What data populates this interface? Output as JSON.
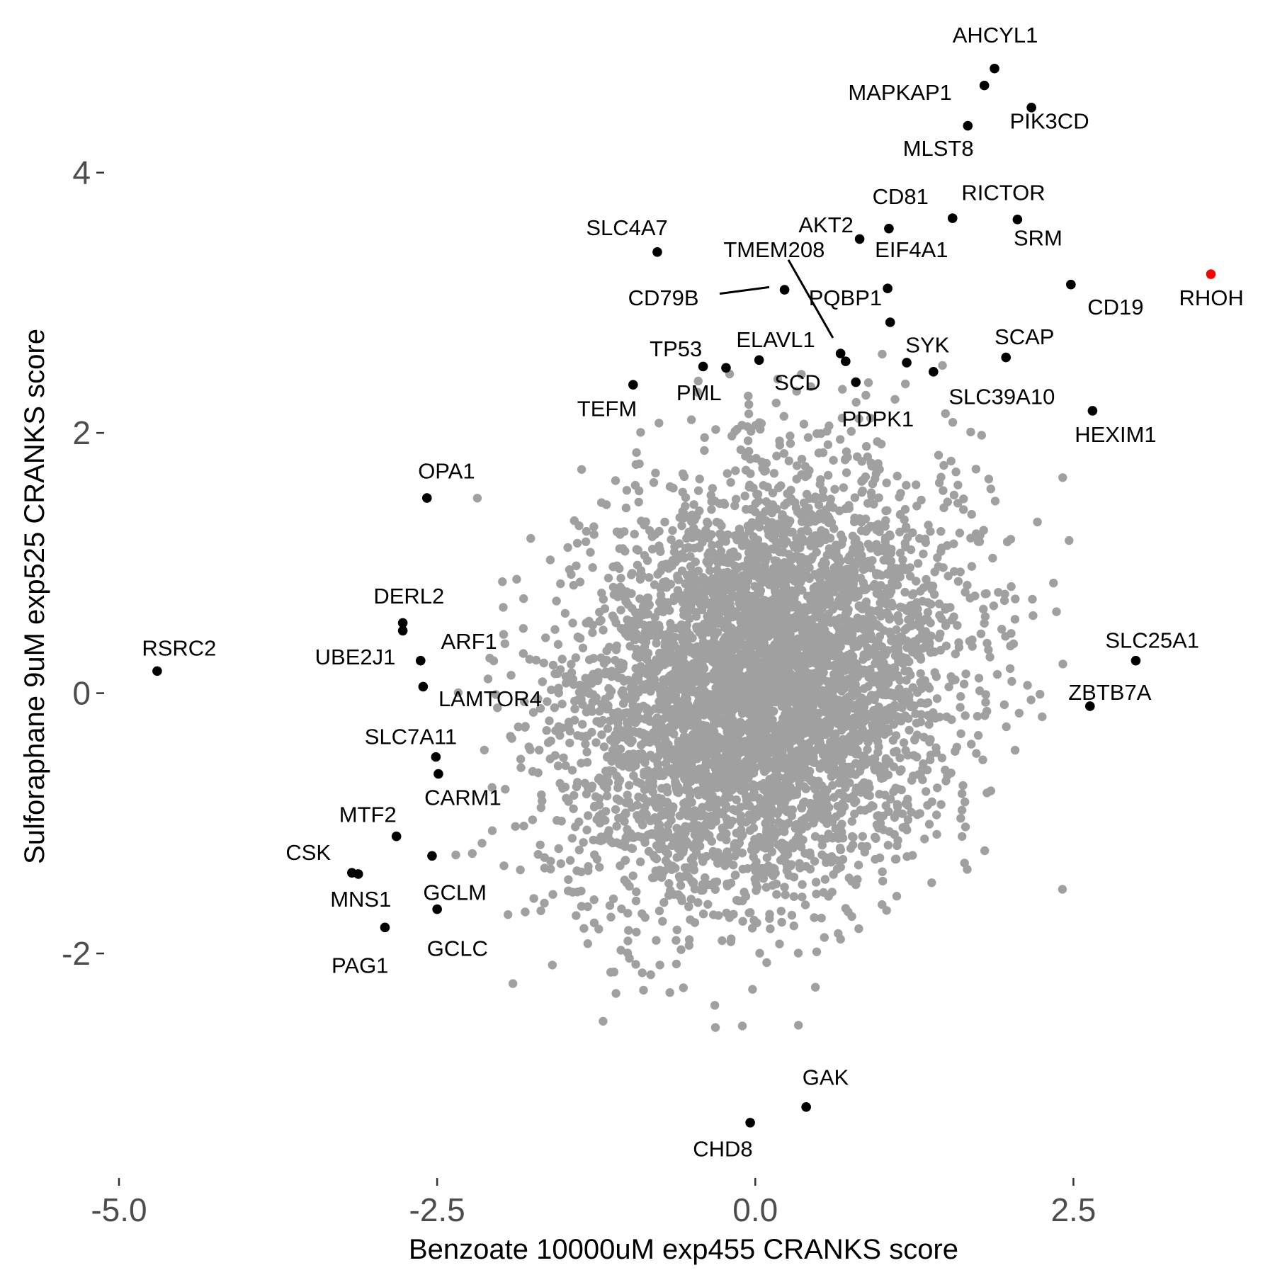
{
  "chart_data": {
    "type": "scatter",
    "xlabel": "Benzoate 10000uM exp455 CRANKS score",
    "ylabel": "Sulforaphane 9uM exp525 CRANKS score",
    "xlim": [
      -5.0,
      3.75
    ],
    "ylim": [
      -3.6,
      5.0
    ],
    "x_ticks": [
      {
        "value": -5.0,
        "label": "-5.0"
      },
      {
        "value": -2.5,
        "label": "-2.5"
      },
      {
        "value": 0.0,
        "label": "0.0"
      },
      {
        "value": 2.5,
        "label": "2.5"
      }
    ],
    "y_ticks": [
      {
        "value": -2,
        "label": "-2"
      },
      {
        "value": 0,
        "label": "0"
      },
      {
        "value": 2,
        "label": "2"
      },
      {
        "value": 4,
        "label": "4"
      }
    ],
    "grid": false,
    "colors": {
      "background_points": "#a0a0a0",
      "highlight": "#000000",
      "focus": "#ff0000"
    },
    "background_cloud": {
      "description_hidden": true,
      "x_sd": 0.75,
      "y_sd": 0.8,
      "correlation": 0.2
    },
    "labeled_points": [
      {
        "name": "AHCYL1",
        "x": 1.88,
        "y": 4.8,
        "color": "#000000"
      },
      {
        "name": "MAPKAP1",
        "x": 1.8,
        "y": 4.67,
        "color": "#000000"
      },
      {
        "name": "PIK3CD",
        "x": 2.17,
        "y": 4.5,
        "color": "#000000"
      },
      {
        "name": "MLST8",
        "x": 1.67,
        "y": 4.36,
        "color": "#000000"
      },
      {
        "name": "CD81",
        "x": 1.05,
        "y": 3.57,
        "color": "#000000"
      },
      {
        "name": "RICTOR",
        "x": 1.55,
        "y": 3.65,
        "color": "#000000"
      },
      {
        "name": "SRM",
        "x": 2.06,
        "y": 3.64,
        "color": "#000000"
      },
      {
        "name": "AKT2",
        "x": 0.82,
        "y": 3.49,
        "color": "#000000"
      },
      {
        "name": "SLC4A7",
        "x": -0.77,
        "y": 3.39,
        "color": "#000000"
      },
      {
        "name": "EIF4A1",
        "x": 1.04,
        "y": 3.11,
        "color": "#000000"
      },
      {
        "name": "CD79B",
        "x": 0.23,
        "y": 3.1,
        "color": "#000000"
      },
      {
        "name": "RHOH",
        "x": 3.58,
        "y": 3.22,
        "color": "#ff0000"
      },
      {
        "name": "CD19",
        "x": 2.48,
        "y": 3.14,
        "color": "#000000"
      },
      {
        "name": "PQBP1",
        "x": 1.06,
        "y": 2.85,
        "color": "#000000"
      },
      {
        "name": "TMEM208",
        "x": 0.67,
        "y": 2.61,
        "color": "#000000"
      },
      {
        "name": "SCAP",
        "x": 1.97,
        "y": 2.58,
        "color": "#000000"
      },
      {
        "name": "TP53",
        "x": -0.41,
        "y": 2.51,
        "color": "#000000"
      },
      {
        "name": "ELAVL1",
        "x": 0.03,
        "y": 2.56,
        "color": "#000000"
      },
      {
        "name": "PML",
        "x": -0.23,
        "y": 2.5,
        "color": "#000000"
      },
      {
        "name": "SCD",
        "x": 0.71,
        "y": 2.55,
        "color": "#000000"
      },
      {
        "name": "SYK",
        "x": 1.19,
        "y": 2.54,
        "color": "#000000"
      },
      {
        "name": "SLC39A10",
        "x": 1.4,
        "y": 2.47,
        "color": "#000000"
      },
      {
        "name": "PDPK1",
        "x": 0.79,
        "y": 2.39,
        "color": "#000000"
      },
      {
        "name": "TEFM",
        "x": -0.96,
        "y": 2.37,
        "color": "#000000"
      },
      {
        "name": "HEXIM1",
        "x": 2.65,
        "y": 2.17,
        "color": "#000000"
      },
      {
        "name": "OPA1",
        "x": -2.58,
        "y": 1.5,
        "color": "#000000"
      },
      {
        "name": "DERL2",
        "x": -2.77,
        "y": 0.54,
        "color": "#000000"
      },
      {
        "name": "DERL2",
        "x": -2.77,
        "y": 0.48,
        "color": "#000000",
        "unlabeled": true
      },
      {
        "name": "RSRC2",
        "x": -4.7,
        "y": 0.17,
        "color": "#000000"
      },
      {
        "name": "UBE2J1",
        "x": -2.63,
        "y": 0.25,
        "color": "#000000"
      },
      {
        "name": "LAMTOR4",
        "x": -2.61,
        "y": 0.05,
        "color": "#000000"
      },
      {
        "name": "SLC25A1",
        "x": 2.99,
        "y": 0.25,
        "color": "#000000"
      },
      {
        "name": "ZBTB7A",
        "x": 2.63,
        "y": -0.1,
        "color": "#000000"
      },
      {
        "name": "SLC7A11",
        "x": -2.51,
        "y": -0.49,
        "color": "#000000"
      },
      {
        "name": "CARM1",
        "x": -2.49,
        "y": -0.62,
        "color": "#000000"
      },
      {
        "name": "MTF2",
        "x": -2.82,
        "y": -1.1,
        "color": "#000000"
      },
      {
        "name": "GCLM",
        "x": -2.54,
        "y": -1.25,
        "color": "#000000"
      },
      {
        "name": "CSK",
        "x": -3.17,
        "y": -1.38,
        "color": "#000000"
      },
      {
        "name": "MNS1",
        "x": -3.12,
        "y": -1.39,
        "color": "#000000"
      },
      {
        "name": "GCLC",
        "x": -2.5,
        "y": -1.66,
        "color": "#000000"
      },
      {
        "name": "PAG1",
        "x": -2.91,
        "y": -1.8,
        "color": "#000000"
      },
      {
        "name": "GAK",
        "x": 0.4,
        "y": -3.18,
        "color": "#000000"
      },
      {
        "name": "CHD8",
        "x": -0.04,
        "y": -3.3,
        "color": "#000000"
      }
    ],
    "labels": [
      {
        "text": "AHCYL1",
        "x": 1.55,
        "y": 5.0
      },
      {
        "text": "MAPKAP1",
        "x": 0.73,
        "y": 4.56
      },
      {
        "text": "PIK3CD",
        "x": 2.0,
        "y": 4.34
      },
      {
        "text": "MLST8",
        "x": 1.16,
        "y": 4.13
      },
      {
        "text": "CD81",
        "x": 0.92,
        "y": 3.76
      },
      {
        "text": "RICTOR",
        "x": 1.62,
        "y": 3.79
      },
      {
        "text": "SRM",
        "x": 2.03,
        "y": 3.44
      },
      {
        "text": "AKT2",
        "x": 0.34,
        "y": 3.54
      },
      {
        "text": "SLC4A7",
        "x": -1.33,
        "y": 3.52
      },
      {
        "text": "TMEM208",
        "x": -0.25,
        "y": 3.35
      },
      {
        "text": "EIF4A1",
        "x": 0.94,
        "y": 3.35
      },
      {
        "text": "CD79B",
        "x": -1.0,
        "y": 2.98
      },
      {
        "text": "PQBP1",
        "x": 0.42,
        "y": 2.98
      },
      {
        "text": "RHOH",
        "x": 3.33,
        "y": 2.98
      },
      {
        "text": "CD19",
        "x": 2.61,
        "y": 2.91
      },
      {
        "text": "TP53",
        "x": -0.83,
        "y": 2.59
      },
      {
        "text": "ELAVL1",
        "x": -0.15,
        "y": 2.66
      },
      {
        "text": "SYK",
        "x": 1.18,
        "y": 2.62
      },
      {
        "text": "SCAP",
        "x": 1.88,
        "y": 2.68
      },
      {
        "text": "SCD",
        "x": 0.15,
        "y": 2.33
      },
      {
        "text": "PML",
        "x": -0.62,
        "y": 2.25
      },
      {
        "text": "SLC39A10",
        "x": 1.52,
        "y": 2.22
      },
      {
        "text": "TEFM",
        "x": -1.4,
        "y": 2.13
      },
      {
        "text": "PDPK1",
        "x": 0.68,
        "y": 2.05
      },
      {
        "text": "HEXIM1",
        "x": 2.51,
        "y": 1.93
      },
      {
        "text": "OPA1",
        "x": -2.65,
        "y": 1.65
      },
      {
        "text": "DERL2",
        "x": -3.0,
        "y": 0.69
      },
      {
        "text": "ARF1",
        "x": -2.47,
        "y": 0.34
      },
      {
        "text": "RSRC2",
        "x": -4.82,
        "y": 0.29
      },
      {
        "text": "UBE2J1",
        "x": -3.46,
        "y": 0.22
      },
      {
        "text": "LAMTOR4",
        "x": -2.49,
        "y": -0.1
      },
      {
        "text": "SLC25A1",
        "x": 2.75,
        "y": 0.35
      },
      {
        "text": "ZBTB7A",
        "x": 2.46,
        "y": -0.05
      },
      {
        "text": "SLC7A11",
        "x": -3.07,
        "y": -0.39
      },
      {
        "text": "CARM1",
        "x": -2.6,
        "y": -0.86
      },
      {
        "text": "MTF2",
        "x": -3.27,
        "y": -0.99
      },
      {
        "text": "CSK",
        "x": -3.69,
        "y": -1.28
      },
      {
        "text": "GCLM",
        "x": -2.61,
        "y": -1.59
      },
      {
        "text": "MNS1",
        "x": -3.34,
        "y": -1.64
      },
      {
        "text": "GCLC",
        "x": -2.58,
        "y": -2.02
      },
      {
        "text": "PAG1",
        "x": -3.33,
        "y": -2.15
      },
      {
        "text": "GAK",
        "x": 0.37,
        "y": -3.01
      },
      {
        "text": "CHD8",
        "x": -0.49,
        "y": -3.56
      }
    ],
    "leader_lines": [
      {
        "from": [
          -0.28,
          3.07
        ],
        "to": [
          0.11,
          3.12
        ]
      },
      {
        "from": [
          0.26,
          3.33
        ],
        "to": [
          0.61,
          2.73
        ]
      }
    ]
  }
}
